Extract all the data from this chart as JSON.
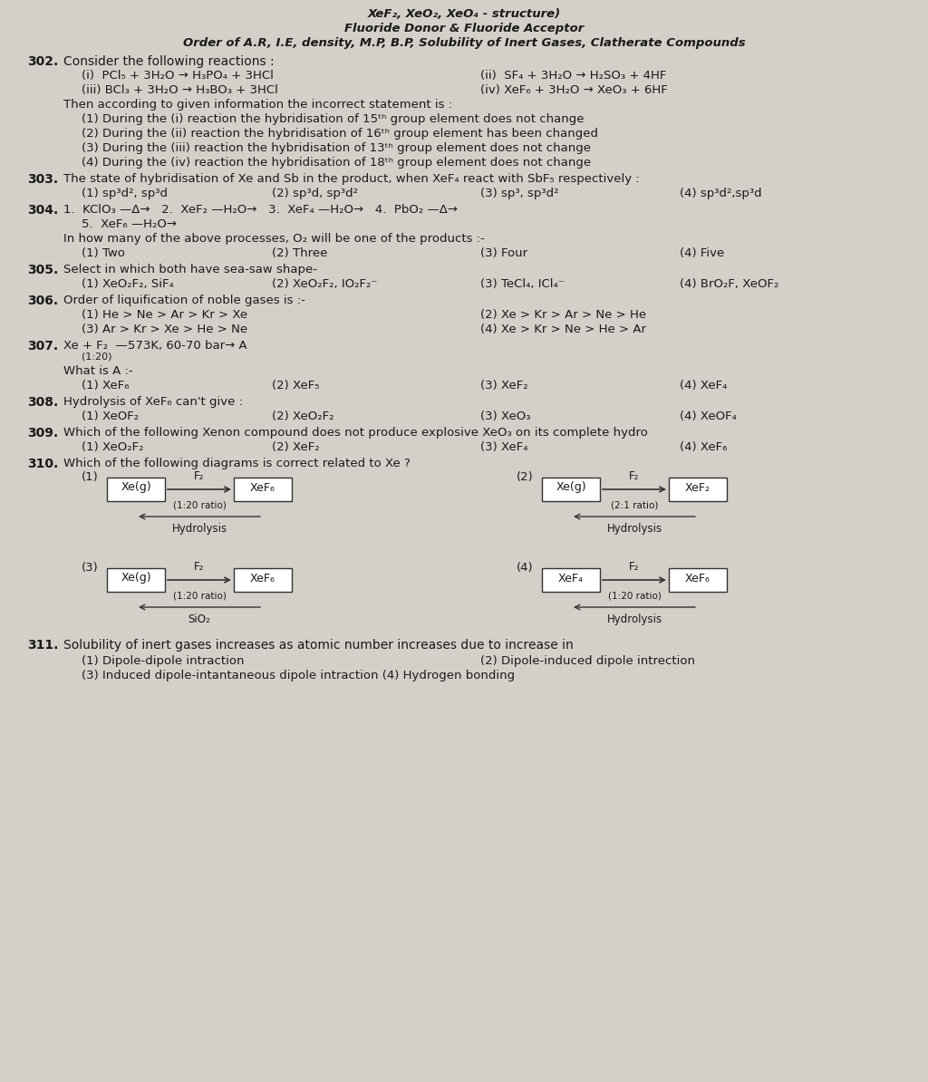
{
  "background_color": "#d4cfc9",
  "text_color": "#1a1a1a",
  "title_line1": "XeF₂, XeO₂, XeO₄ - structure)",
  "title_line2": "Fluoride Donor & Fluoride Acceptor",
  "title_line3": "Order of A.R, I.E, density, M.P, B.P, Solubility of Inert Gases, Clatherate Compounds",
  "content": [
    {
      "type": "question",
      "num": "302.",
      "text": "Consider the following reactions :"
    },
    {
      "type": "indent2",
      "text": "(i)  PCl₅ + 3H₂O → H₃PO₄ + 3HCl"
    },
    {
      "type": "indent2_right",
      "text": "(ii) SF₄ + 3H₂O → H₂SO₃ + 4HF"
    },
    {
      "type": "indent2",
      "text": "(iii) BCl₃ + 3H₂O → H₃BO₃ + 3HCl"
    },
    {
      "type": "indent2_right",
      "text": "(iv) XeF₆ + 3H₂O → XeO₃ + 6HF"
    },
    {
      "type": "indent1",
      "text": "Then according to given information the incorrect statement is :"
    },
    {
      "type": "indent2",
      "text": "(1) During the (i) reaction the hybridisation of 15ᵗʰ group element does not change"
    },
    {
      "type": "indent2",
      "text": "(2) During the (ii) reaction the hybridisation of 16ᵗʰ group element has been changed"
    },
    {
      "type": "indent2",
      "text": "(3) During the (iii) reaction the hybridisation of 13ᵗʰ group element does not change"
    },
    {
      "type": "indent2",
      "text": "(4) During the (iv) reaction the hybridisation of 18ᵗʰ group element does not change"
    },
    {
      "type": "question",
      "num": "303.",
      "text": "The state of hybridisation of Xe and Sb in the product, when XeF₄ react with SbF₅ respectively :"
    },
    {
      "type": "options4",
      "opts": [
        "(1) sp³d², sp³d",
        "(2) sp³d, sp³d²",
        "(3) sp³, sp³d²",
        "(4) sp³d²,sp³d"
      ]
    },
    {
      "type": "question",
      "num": "304.",
      "text": "1.  KClO₃ —Δ→   2.  XeF₂ —H₂O→   3.  XeF₄ —H₂O→   4.  PbO₂ —Δ→"
    },
    {
      "type": "indent2",
      "text": "5.  XeF₆ —H₂O→"
    },
    {
      "type": "indent1",
      "text": "In how many of the above processes, O₂ will be one of the products :-"
    },
    {
      "type": "options4",
      "opts": [
        "(1) Two",
        "(2) Three",
        "(3) Four",
        "(4) Five"
      ]
    },
    {
      "type": "question",
      "num": "305.",
      "text": "Select in which both have sea-saw shape-"
    },
    {
      "type": "options4",
      "opts": [
        "(1) XeO₂F₂, SiF₄",
        "(2) XeO₂F₂, IO₂F₂⁻",
        "(3) TeCl₄, ICl₄⁻",
        "(4) BrO₂F, XeOF₂"
      ]
    },
    {
      "type": "question",
      "num": "306.",
      "text": "Order of liquification of noble gases is :-"
    },
    {
      "type": "options2x2",
      "opts": [
        "(1) He > Ne > Ar > Kr > Xe",
        "(2) Xe > Kr > Ar > Ne > He",
        "(3) Ar > Kr > Xe > He > Ne",
        "(4) Xe > Kr > Ne > He > Ar"
      ]
    },
    {
      "type": "question",
      "num": "307.",
      "text": "Xe + F₂ —573K, 60-70 bar→ A"
    },
    {
      "type": "indent2",
      "text": "(1:20)"
    },
    {
      "type": "indent1",
      "text": "What is A :-"
    },
    {
      "type": "options4",
      "opts": [
        "(1) XeF₆",
        "(2) XeF₅",
        "(3) XeF₂",
        "(4) XeF₄"
      ]
    },
    {
      "type": "question",
      "num": "308.",
      "text": "Hydrolysis of XeF₆ can't give :"
    },
    {
      "type": "options4",
      "opts": [
        "(1) XeOF₂",
        "(2) XeO₂F₂",
        "(3) XeO₃",
        "(4) XeOF₄"
      ]
    },
    {
      "type": "question_long",
      "num": "309.",
      "text": "Which of the following Xenon compound does not produce explosive XeO₃ on its complete hydro"
    },
    {
      "type": "options4",
      "opts": [
        "(1) XeO₂F₂",
        "(2) XeF₂",
        "(3) XeF₄",
        "(4) XeF₆"
      ]
    },
    {
      "type": "question",
      "num": "310.",
      "text": "Which of the following diagrams is correct related to Xe ?"
    }
  ],
  "diagrams": {
    "d1": {
      "label": "(1)",
      "node1": "Xe(g)",
      "arrow_label": "F₂",
      "arrow_sub": "(1:20 ratio)",
      "node2": "XeF₆",
      "back_label": "Hydrolysis"
    },
    "d2": {
      "label": "(2)",
      "node1": "Xe(g)",
      "arrow_label": "F₂",
      "arrow_sub": "(2:1 ratio)",
      "node2": "XeF₂",
      "back_label": "Hydrolysis"
    },
    "d3": {
      "label": "(3)",
      "node1": "Xe(g)",
      "arrow_label": "F₂",
      "arrow_sub": "(1:20 ratio)",
      "node2": "XeF₆",
      "back_label": "SiO₂"
    },
    "d4": {
      "label": "(4)",
      "node1": "XeF₄",
      "arrow_label": "F₂",
      "arrow_sub": "(1:20 ratio)",
      "node2": "XeF₆",
      "back_label": "Hydrolysis"
    }
  },
  "q311": "311.  Solubility of inert gases increases as atomic number increases due to increase in",
  "q311_opts": [
    "(1) Dipole-dipole intraction",
    "(2) Dipole-induced dipole intrection",
    "(3) Induced dipole-intantaneous dipole intraction (4) Hydrogen bonding"
  ]
}
